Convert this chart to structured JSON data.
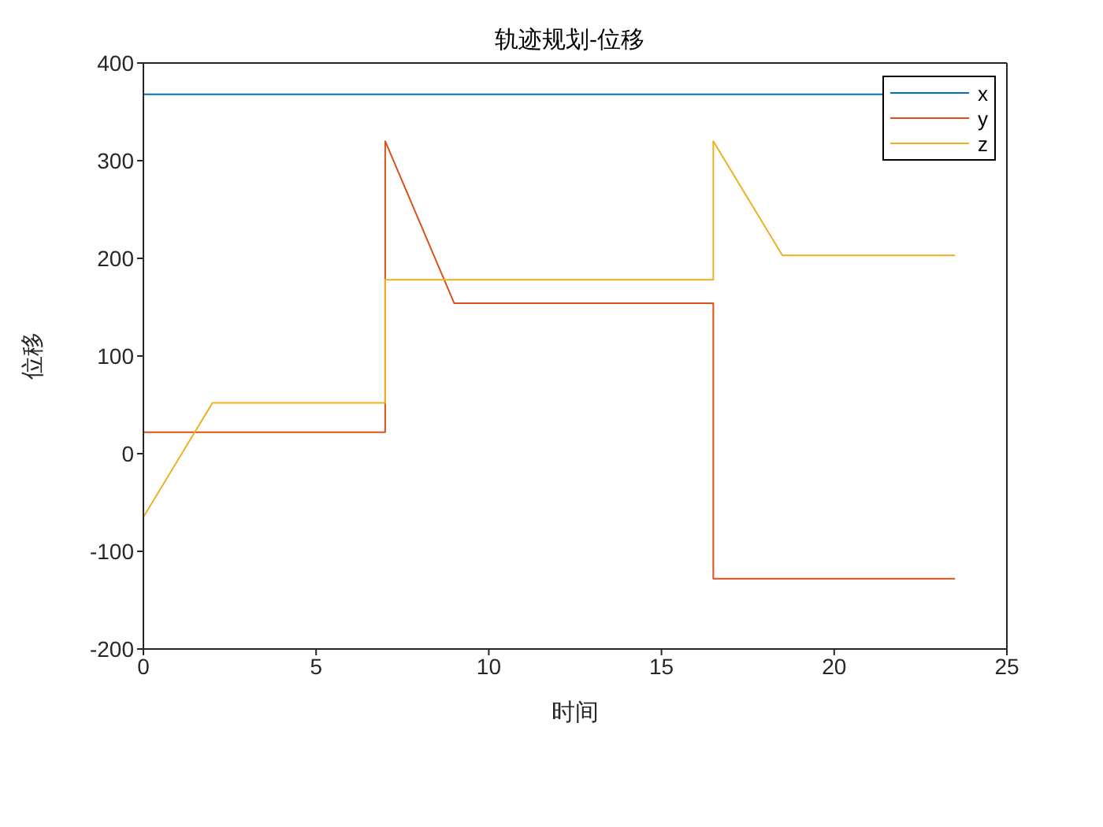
{
  "chart_data": {
    "type": "line",
    "title": "轨迹规划-位移",
    "xlabel": "时间",
    "ylabel": "位移",
    "xlim": [
      0,
      25
    ],
    "xticks": [
      0,
      5,
      10,
      15,
      20,
      25
    ],
    "ylim": [
      -200,
      400
    ],
    "yticks": [
      -200,
      -100,
      0,
      100,
      200,
      300,
      400
    ],
    "legend": "top right",
    "marker": "none",
    "line_style": "solid",
    "series": [
      {
        "name": "x",
        "color": "#0072bd",
        "x": [
          0,
          23.5
        ],
        "values": [
          368,
          368
        ]
      },
      {
        "name": "y",
        "color": "#d95319",
        "x": [
          0,
          7,
          7,
          9,
          16.5,
          16.5,
          23.5
        ],
        "values": [
          22,
          22,
          320,
          154,
          154,
          -128,
          -128
        ]
      },
      {
        "name": "z",
        "color": "#edb120",
        "x": [
          0,
          2,
          7,
          7,
          16.5,
          16.5,
          18.5,
          23.5
        ],
        "values": [
          -65,
          52,
          52,
          178,
          178,
          320,
          203,
          203
        ]
      }
    ]
  }
}
